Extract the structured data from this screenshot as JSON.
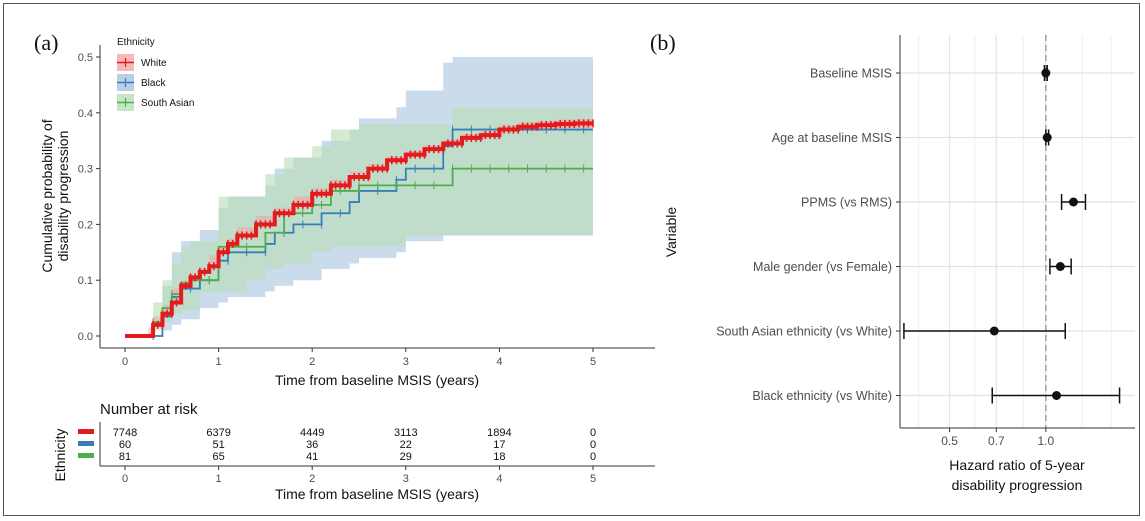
{
  "chart_data": [
    {
      "panel_label": "(a)",
      "type": "line",
      "xlabel": "Time from baseline MSIS (years)",
      "ylabel_lines": [
        "Cumulative probability of",
        "disability progression"
      ],
      "xlim": [
        0,
        5
      ],
      "ylim": [
        0,
        0.5
      ],
      "x_ticks": [
        0,
        1,
        2,
        3,
        4,
        5
      ],
      "y_ticks": [
        "0.0",
        "0.1",
        "0.2",
        "0.3",
        "0.4",
        "0.5"
      ],
      "legend": {
        "title": "Ethnicity",
        "placement": "top-left"
      },
      "grid": false,
      "series": [
        {
          "name": "White",
          "color": "#e41a1c",
          "band_color": "#f4a6a6",
          "x": [
            0,
            0.25,
            0.3,
            0.4,
            0.5,
            0.6,
            0.7,
            0.8,
            0.9,
            1.0,
            1.1,
            1.2,
            1.4,
            1.6,
            1.8,
            2.0,
            2.2,
            2.4,
            2.6,
            2.8,
            3.0,
            3.2,
            3.4,
            3.6,
            3.8,
            4.0,
            4.2,
            4.4,
            4.6,
            4.8,
            5.0
          ],
          "y": [
            0,
            0.0,
            0.02,
            0.04,
            0.06,
            0.09,
            0.105,
            0.115,
            0.125,
            0.15,
            0.165,
            0.18,
            0.2,
            0.22,
            0.235,
            0.255,
            0.27,
            0.285,
            0.3,
            0.315,
            0.325,
            0.335,
            0.345,
            0.355,
            0.36,
            0.37,
            0.375,
            0.378,
            0.38,
            0.381,
            0.381
          ],
          "lower": [
            0,
            0.0,
            0.015,
            0.035,
            0.055,
            0.085,
            0.1,
            0.11,
            0.12,
            0.145,
            0.16,
            0.175,
            0.195,
            0.215,
            0.23,
            0.25,
            0.265,
            0.28,
            0.295,
            0.308,
            0.318,
            0.328,
            0.338,
            0.348,
            0.353,
            0.362,
            0.367,
            0.37,
            0.372,
            0.373,
            0.373
          ],
          "upper": [
            0,
            0.0,
            0.025,
            0.045,
            0.065,
            0.095,
            0.11,
            0.12,
            0.13,
            0.155,
            0.17,
            0.185,
            0.205,
            0.225,
            0.24,
            0.26,
            0.275,
            0.29,
            0.305,
            0.322,
            0.332,
            0.342,
            0.352,
            0.362,
            0.367,
            0.378,
            0.383,
            0.386,
            0.388,
            0.389,
            0.389
          ]
        },
        {
          "name": "Black",
          "color": "#377eb8",
          "band_color": "#a6c4e0",
          "x": [
            0,
            0.3,
            0.4,
            0.5,
            0.6,
            0.8,
            1.0,
            1.1,
            1.5,
            1.6,
            1.8,
            2.1,
            2.4,
            2.5,
            2.9,
            3.0,
            3.4,
            3.5,
            4.0,
            5.0
          ],
          "y": [
            0,
            0.0,
            0.035,
            0.07,
            0.085,
            0.1,
            0.135,
            0.15,
            0.165,
            0.185,
            0.2,
            0.22,
            0.24,
            0.26,
            0.28,
            0.3,
            0.34,
            0.37,
            0.37,
            0.37
          ],
          "lower": [
            0,
            0.0,
            0.0,
            0.01,
            0.02,
            0.03,
            0.05,
            0.06,
            0.07,
            0.08,
            0.09,
            0.1,
            0.12,
            0.13,
            0.14,
            0.15,
            0.17,
            0.18,
            0.18,
            0.18
          ],
          "upper": [
            0,
            0.0,
            0.09,
            0.15,
            0.17,
            0.19,
            0.23,
            0.25,
            0.27,
            0.3,
            0.32,
            0.35,
            0.37,
            0.39,
            0.41,
            0.44,
            0.49,
            0.5,
            0.5,
            0.5
          ]
        },
        {
          "name": "South Asian",
          "color": "#4daf4a",
          "band_color": "#b8deb4",
          "x": [
            0,
            0.25,
            0.3,
            0.4,
            0.5,
            0.6,
            0.7,
            0.8,
            1.0,
            1.3,
            1.5,
            1.7,
            2.0,
            2.2,
            2.5,
            3.0,
            3.5,
            4.0,
            5.0
          ],
          "y": [
            0,
            0.0,
            0.025,
            0.05,
            0.075,
            0.095,
            0.1,
            0.1,
            0.16,
            0.16,
            0.185,
            0.22,
            0.235,
            0.26,
            0.27,
            0.27,
            0.3,
            0.3,
            0.3
          ],
          "lower": [
            0,
            0.0,
            0.0,
            0.01,
            0.025,
            0.04,
            0.045,
            0.045,
            0.08,
            0.08,
            0.1,
            0.12,
            0.13,
            0.15,
            0.16,
            0.16,
            0.18,
            0.18,
            0.18
          ],
          "upper": [
            0,
            0.0,
            0.06,
            0.1,
            0.13,
            0.16,
            0.17,
            0.17,
            0.25,
            0.25,
            0.29,
            0.32,
            0.34,
            0.37,
            0.38,
            0.38,
            0.41,
            0.41,
            0.41
          ]
        }
      ],
      "risk_table": {
        "title": "Number at risk",
        "ylabel": "Ethnicity",
        "xlabel": "Time from baseline MSIS (years)",
        "times": [
          0,
          1,
          2,
          3,
          4,
          5
        ],
        "rows": [
          {
            "name": "White",
            "color": "#e41a1c",
            "values": [
              "7748",
              "6379",
              "4449",
              "3113",
              "1894",
              "0"
            ]
          },
          {
            "name": "Black",
            "color": "#377eb8",
            "values": [
              "60",
              "51",
              "36",
              "22",
              "17",
              "0"
            ]
          },
          {
            "name": "South Asian",
            "color": "#4daf4a",
            "values": [
              "81",
              "65",
              "41",
              "29",
              "18",
              "0"
            ]
          }
        ]
      }
    },
    {
      "panel_label": "(b)",
      "type": "scatter",
      "subtype": "forest",
      "xlabel_lines": [
        "Hazard ratio of 5-year",
        "disability progression"
      ],
      "ylabel": "Variable",
      "x_ticks": [
        0.5,
        0.7,
        1.0
      ],
      "x_tick_labels": [
        "0.5",
        "0.7",
        "1.0"
      ],
      "xlim": [
        0.35,
        1.9
      ],
      "reference_line": 1.0,
      "grid": true,
      "rows": [
        {
          "label": "Baseline MSIS",
          "hr": 1.0,
          "lo": 0.99,
          "hi": 1.01
        },
        {
          "label": "Age at baseline MSIS",
          "hr": 1.01,
          "lo": 1.0,
          "hi": 1.02
        },
        {
          "label": "PPMS (vs RMS)",
          "hr": 1.22,
          "lo": 1.12,
          "hi": 1.33
        },
        {
          "label": "Male gender (vs Female)",
          "hr": 1.11,
          "lo": 1.03,
          "hi": 1.2
        },
        {
          "label": "South Asian ethnicity (vs White)",
          "hr": 0.69,
          "lo": 0.36,
          "hi": 1.15
        },
        {
          "label": "Black ethnicity (vs White)",
          "hr": 1.08,
          "lo": 0.68,
          "hi": 1.7
        }
      ]
    }
  ]
}
